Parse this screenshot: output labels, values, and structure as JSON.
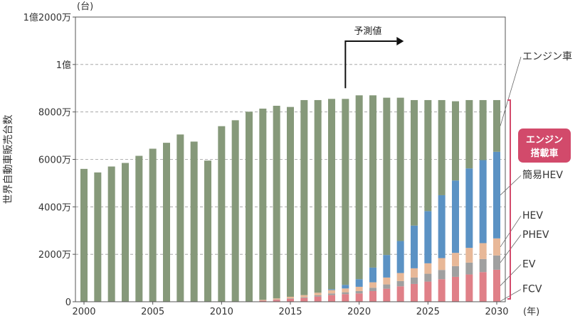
{
  "chart_data": {
    "type": "bar",
    "stacked": true,
    "y_unit_label": "(台)",
    "ylabel": "世界自動車販売台数",
    "x_unit_label": "(年)",
    "ylim": [
      0,
      120000000
    ],
    "x_ticks": [
      2000,
      2005,
      2010,
      2015,
      2020,
      2025,
      2030
    ],
    "y_ticks": [
      {
        "value": 0,
        "label": "0"
      },
      {
        "value": 20000000,
        "label": "2000万"
      },
      {
        "value": 40000000,
        "label": "4000万"
      },
      {
        "value": 60000000,
        "label": "6000万"
      },
      {
        "value": 80000000,
        "label": "8000万"
      },
      {
        "value": 100000000,
        "label": "1億"
      },
      {
        "value": 120000000,
        "label": "1億2000万"
      }
    ],
    "forecast_label": "予測値",
    "forecast_start_year": 2019,
    "grid": "dashed-horizontal",
    "years": [
      2000,
      2001,
      2002,
      2003,
      2004,
      2005,
      2006,
      2007,
      2008,
      2009,
      2010,
      2011,
      2012,
      2013,
      2014,
      2015,
      2016,
      2017,
      2018,
      2019,
      2020,
      2021,
      2022,
      2023,
      2024,
      2025,
      2026,
      2027,
      2028,
      2029,
      2030
    ],
    "series": [
      {
        "name": "FCV",
        "color": "#e08088",
        "values": [
          0,
          0,
          0,
          0,
          0,
          0,
          0,
          0,
          0,
          0,
          0,
          0,
          0,
          0,
          0,
          0,
          0,
          0,
          0,
          0,
          0,
          0,
          0,
          0,
          0,
          0,
          0,
          0,
          0,
          0,
          0
        ]
      },
      {
        "name": "EV",
        "color": "#e08088",
        "values": [
          0,
          0,
          0,
          0,
          0,
          0,
          0,
          0,
          0,
          0,
          0,
          0,
          0,
          500000,
          800000,
          1200000,
          1600000,
          2200000,
          2800000,
          3200000,
          3500000,
          4500000,
          5500000,
          6500000,
          7500000,
          8500000,
          9500000,
          10500000,
          11500000,
          12500000,
          13500000
        ]
      },
      {
        "name": "PHEV",
        "color": "#a0a0a0",
        "values": [
          0,
          0,
          0,
          0,
          0,
          0,
          0,
          0,
          0,
          0,
          0,
          0,
          0,
          0,
          100000,
          200000,
          300000,
          500000,
          700000,
          800000,
          1000000,
          1400000,
          1800000,
          2200000,
          2700000,
          3300000,
          3900000,
          4500000,
          5000000,
          5500000,
          6000000
        ]
      },
      {
        "name": "HEV",
        "color": "#e8b898",
        "values": [
          0,
          0,
          0,
          0,
          0,
          0,
          0,
          0,
          0,
          0,
          0,
          0,
          100000,
          300000,
          500000,
          700000,
          900000,
          1100000,
          1400000,
          1600000,
          1800000,
          2300000,
          2900000,
          3400000,
          3900000,
          4400000,
          5000000,
          5600000,
          6200000,
          6700000,
          7200000
        ]
      },
      {
        "name": "簡易HEV",
        "color": "#5b92c4",
        "values": [
          0,
          0,
          0,
          0,
          0,
          0,
          0,
          0,
          0,
          0,
          0,
          0,
          0,
          0,
          0,
          0,
          0,
          0,
          400000,
          1500000,
          3200000,
          6200000,
          9500000,
          13500000,
          18000000,
          22000000,
          26500000,
          30500000,
          33500000,
          35000000,
          36500000
        ]
      },
      {
        "name": "エンジン車",
        "color": "#86997a",
        "values": [
          56000000,
          54500000,
          57000000,
          58500000,
          61500000,
          64500000,
          67000000,
          70500000,
          67500000,
          59500000,
          74000000,
          76500000,
          80000000,
          80600000,
          81200000,
          80000000,
          82200000,
          81200000,
          80200000,
          78400000,
          77500000,
          72600000,
          66300000,
          60400000,
          52900000,
          46800000,
          40100000,
          33400000,
          28800000,
          25300000,
          21800000
        ]
      }
    ],
    "legend": [
      {
        "name": "エンジン車",
        "y": 102000000
      },
      {
        "name": "簡易HEV",
        "y": 52000000
      },
      {
        "name": "HEV",
        "y": 35000000
      },
      {
        "name": "PHEV",
        "y": 27000000
      },
      {
        "name": "EV",
        "y": 14500000
      },
      {
        "name": "FCV",
        "y": 4000000
      }
    ],
    "badge_lines": [
      "エンジン",
      "搭載車"
    ],
    "badge_color": "#d24a6b"
  }
}
